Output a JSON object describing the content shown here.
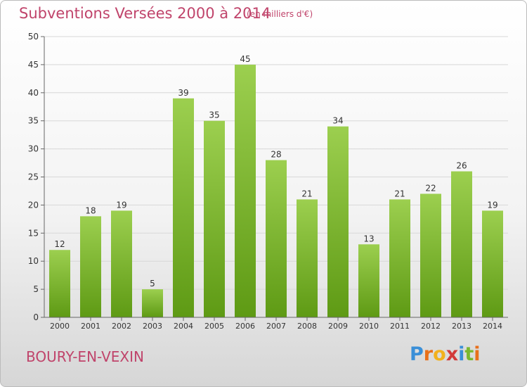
{
  "header": {
    "title": "Subventions Versées 2000 à 2014",
    "subtitle": "(en milliers d'€)"
  },
  "footer": {
    "commune": "BOURY-EN-VEXIN",
    "logo_letters": [
      "P",
      "r",
      "o",
      "x",
      "i",
      "t",
      "i"
    ]
  },
  "colors": {
    "title": "#c0446b",
    "bar_top": "#9ccf4f",
    "bar_bottom": "#5e9a14",
    "grid": "#d8d8d8",
    "logo": [
      "#3a8fd8",
      "#e8701a",
      "#f2b11c",
      "#d23a3a",
      "#3a8fd8",
      "#7ab82e",
      "#e8701a"
    ]
  },
  "chart_data": {
    "type": "bar",
    "title": "Subventions Versées 2000 à 2014",
    "subtitle": "(en milliers d'€)",
    "categories": [
      "2000",
      "2001",
      "2002",
      "2003",
      "2004",
      "2005",
      "2006",
      "2007",
      "2008",
      "2009",
      "2010",
      "2011",
      "2012",
      "2013",
      "2014"
    ],
    "values": [
      12,
      18,
      19,
      5,
      39,
      35,
      45,
      28,
      21,
      34,
      13,
      21,
      22,
      26,
      19
    ],
    "xlabel": "",
    "ylabel": "",
    "ylim": [
      0,
      50
    ],
    "yticks": [
      0,
      5,
      10,
      15,
      20,
      25,
      30,
      35,
      40,
      45,
      50
    ],
    "grid": true,
    "data_labels": true
  }
}
